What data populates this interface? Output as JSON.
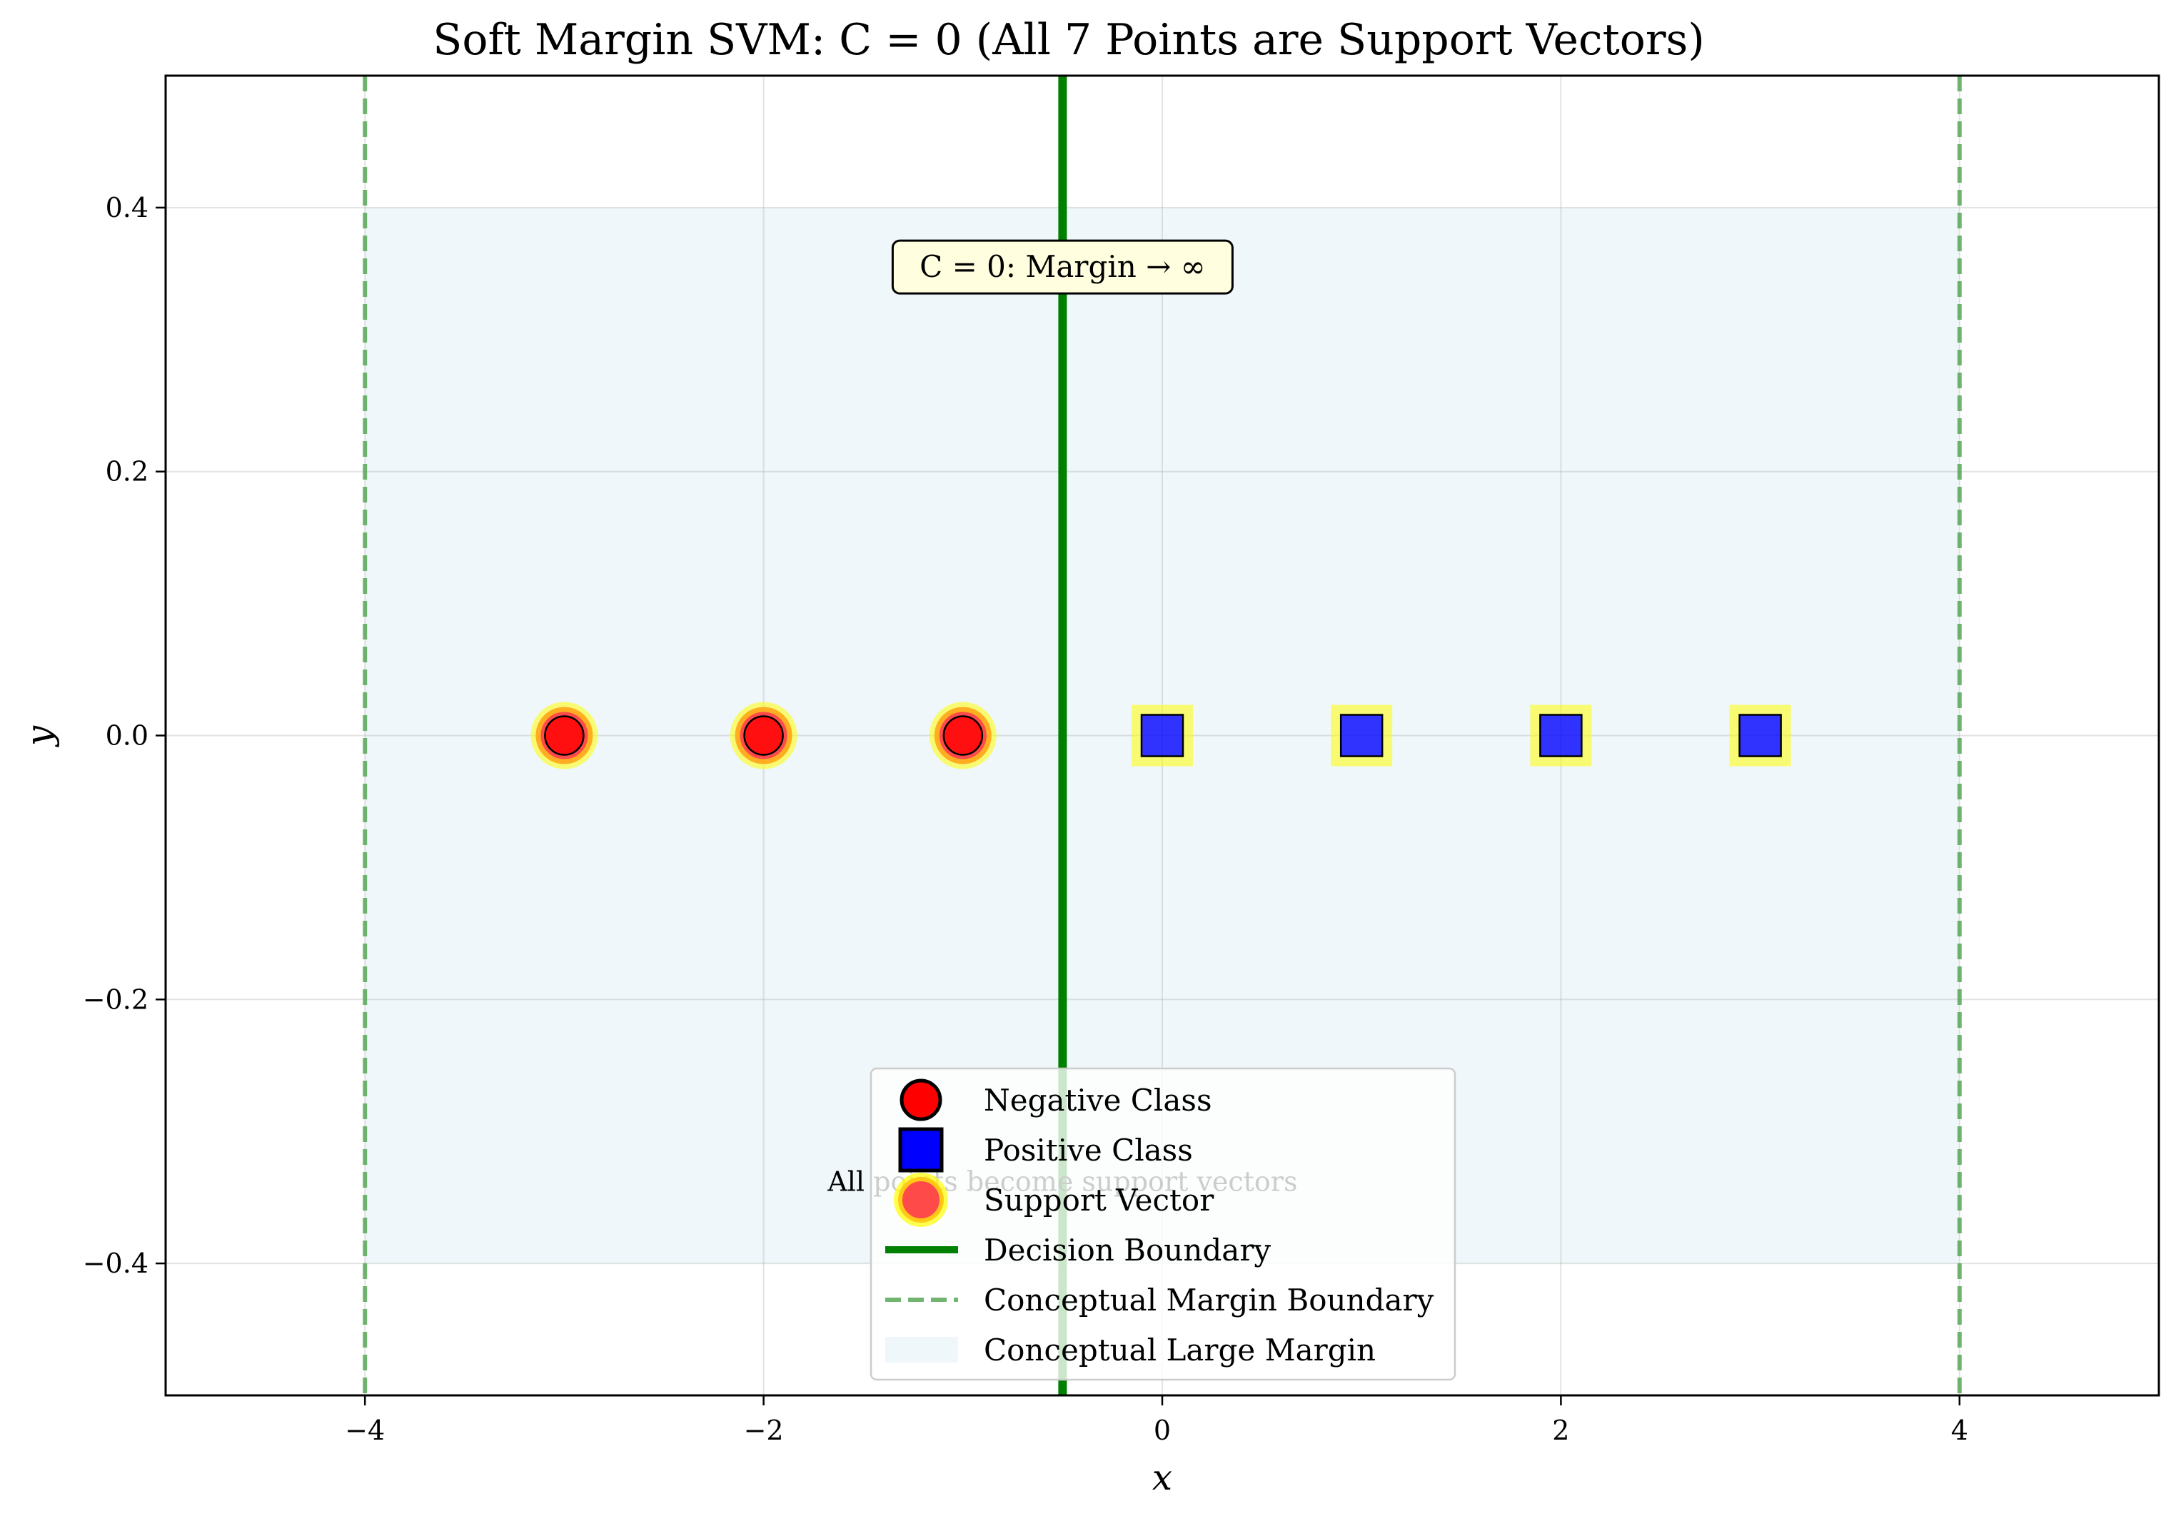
{
  "chart_data": {
    "type": "scatter",
    "title": "Soft Margin SVM: C = 0 (All 7 Points are Support Vectors)",
    "xlabel": "x",
    "ylabel": "y",
    "xlim": [
      -5,
      5
    ],
    "ylim": [
      -0.5,
      0.5
    ],
    "grid": true,
    "legend_position": "bottom-center",
    "x_ticks": [
      -4,
      -2,
      0,
      2,
      4
    ],
    "y_ticks": [
      -0.4,
      -0.2,
      0.0,
      0.2,
      0.4
    ],
    "x_tick_labels": [
      "−4",
      "−2",
      "0",
      "2",
      "4"
    ],
    "y_tick_labels": [
      "−0.4",
      "−0.2",
      "0.0",
      "0.2",
      "0.4"
    ],
    "series": [
      {
        "name": "Negative Class",
        "marker": "circle",
        "color": "#ff0000",
        "x": [
          -3,
          -2,
          -1
        ],
        "y": [
          0,
          0,
          0
        ]
      },
      {
        "name": "Positive Class",
        "marker": "square",
        "color": "#0000ff",
        "x": [
          0,
          1,
          2,
          3
        ],
        "y": [
          0,
          0,
          0,
          0
        ]
      }
    ],
    "support_vectors": {
      "name": "Support Vector",
      "color": "#ffff00",
      "x": [
        -3,
        -2,
        -1,
        0,
        1,
        2,
        3
      ],
      "y": [
        0,
        0,
        0,
        0,
        0,
        0,
        0
      ]
    },
    "decision_boundary": {
      "name": "Decision Boundary",
      "x": -0.5,
      "color": "#008000"
    },
    "margin_boundaries": {
      "name": "Conceptual Margin Boundary",
      "x": [
        -4,
        4
      ],
      "color": "#4ea24e"
    },
    "margin_region": {
      "name": "Conceptual Large Margin",
      "x_range": [
        -4,
        4
      ],
      "y_range": [
        -0.4,
        0.4
      ],
      "color": "#add8e6"
    },
    "annotations": [
      {
        "id": "margin-note",
        "text": "C = 0:  Margin → ∞",
        "x": -0.5,
        "y": 0.355
      },
      {
        "id": "support-note",
        "text": "All points become support vectors",
        "x": -0.5,
        "y": -0.345
      }
    ]
  }
}
